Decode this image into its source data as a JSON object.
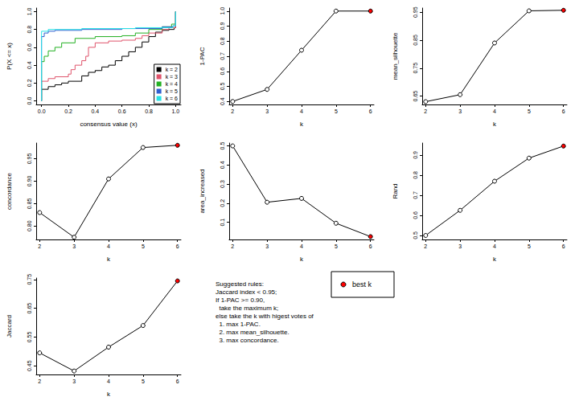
{
  "chart_data": [
    {
      "type": "line",
      "step": true,
      "x_label": "consensus value (x)",
      "y_label": "P(X <= x)",
      "xlim": [
        -0.04,
        1.04
      ],
      "ylim": [
        -0.04,
        1.04
      ],
      "xticks": [
        {
          "value": 0,
          "label": "0.0"
        },
        {
          "value": 0.2,
          "label": "0.2"
        },
        {
          "value": 0.4,
          "label": "0.4"
        },
        {
          "value": 0.6,
          "label": "0.6"
        },
        {
          "value": 0.8,
          "label": "0.8"
        },
        {
          "value": 1,
          "label": "1.0"
        }
      ],
      "yticks": [
        {
          "value": 0,
          "label": "0.0"
        },
        {
          "value": 0.2,
          "label": "0.2"
        },
        {
          "value": 0.4,
          "label": "0.4"
        },
        {
          "value": 0.6,
          "label": "0.6"
        },
        {
          "value": 0.8,
          "label": "0.8"
        },
        {
          "value": 1,
          "label": "1.0"
        }
      ],
      "legend": "bottomright",
      "series": [
        {
          "name": "k = 2",
          "color": "#000000",
          "x": [
            0,
            0,
            0.05,
            0.1,
            0.15,
            0.2,
            0.3,
            0.35,
            0.4,
            0.45,
            0.5,
            0.55,
            0.6,
            0.65,
            0.7,
            0.75,
            0.8,
            0.85,
            0.9,
            0.95,
            0.99,
            1.0
          ],
          "values": [
            0,
            0.13,
            0.16,
            0.18,
            0.2,
            0.22,
            0.28,
            0.32,
            0.34,
            0.38,
            0.4,
            0.45,
            0.5,
            0.55,
            0.6,
            0.66,
            0.72,
            0.77,
            0.79,
            0.8,
            0.82,
            1.0
          ]
        },
        {
          "name": "k = 3",
          "color": "#df536b",
          "x": [
            0,
            0,
            0.05,
            0.1,
            0.2,
            0.22,
            0.25,
            0.3,
            0.33,
            0.35,
            0.4,
            0.5,
            0.6,
            0.7,
            0.75,
            0.8,
            0.9,
            0.95,
            1.0
          ],
          "values": [
            0,
            0.22,
            0.25,
            0.27,
            0.3,
            0.35,
            0.4,
            0.45,
            0.5,
            0.6,
            0.65,
            0.67,
            0.68,
            0.7,
            0.73,
            0.76,
            0.8,
            0.82,
            1.0
          ]
        },
        {
          "name": "k = 4",
          "color": "#22b022",
          "x": [
            0,
            0,
            0.02,
            0.05,
            0.1,
            0.15,
            0.25,
            0.4,
            0.6,
            0.7,
            0.8,
            0.9,
            0.97,
            1.0
          ],
          "values": [
            0,
            0.44,
            0.5,
            0.56,
            0.6,
            0.65,
            0.7,
            0.72,
            0.73,
            0.76,
            0.8,
            0.83,
            0.86,
            1.0
          ]
        },
        {
          "name": "k = 5",
          "color": "#2f5fd0",
          "x": [
            0,
            0,
            0.02,
            0.05,
            0.1,
            0.3,
            0.6,
            0.9,
            0.98,
            1.0
          ],
          "values": [
            0,
            0.72,
            0.76,
            0.78,
            0.79,
            0.8,
            0.81,
            0.83,
            0.84,
            1.0
          ]
        },
        {
          "name": "k = 6",
          "color": "#28e2e5",
          "x": [
            0,
            0,
            0.05,
            0.3,
            0.7,
            0.98,
            1.0
          ],
          "values": [
            0,
            0.78,
            0.8,
            0.81,
            0.82,
            0.84,
            1.0
          ]
        }
      ]
    },
    {
      "type": "line",
      "x_label": "k",
      "y_label": "1-PAC",
      "marker": "circle",
      "x": [
        2,
        3,
        4,
        5,
        6
      ],
      "values": [
        0.4,
        0.48,
        0.74,
        1.0,
        1.0
      ],
      "colors": [
        "black",
        "black",
        "black",
        "black",
        "red"
      ],
      "xlim": [
        1.9,
        6.1
      ],
      "xticks": [
        2,
        3,
        4,
        5,
        6
      ],
      "ylim": [
        0.38,
        1.02
      ],
      "yticks": [
        0.4,
        0.5,
        0.6,
        0.7,
        0.8,
        0.9,
        {
          "value": 1,
          "label": "1.0"
        }
      ]
    },
    {
      "type": "line",
      "x_label": "k",
      "y_label": "mean_silhouette",
      "marker": "circle",
      "x": [
        2,
        3,
        4,
        5,
        6
      ],
      "values": [
        0.63,
        0.655,
        0.84,
        0.955,
        0.957
      ],
      "colors": [
        "black",
        "black",
        "black",
        "black",
        "red"
      ],
      "xlim": [
        1.9,
        6.1
      ],
      "xticks": [
        2,
        3,
        4,
        5,
        6
      ],
      "ylim": [
        0.62,
        0.965
      ],
      "yticks": [
        0.65,
        0.75,
        0.85,
        0.95
      ]
    },
    {
      "type": "line",
      "x_label": "k",
      "y_label": "concordance",
      "marker": "circle",
      "x": [
        2,
        3,
        4,
        5,
        6
      ],
      "values": [
        0.83,
        0.775,
        0.905,
        0.975,
        0.98
      ],
      "colors": [
        "black",
        "black",
        "black",
        "black",
        "red"
      ],
      "xlim": [
        1.9,
        6.1
      ],
      "xticks": [
        2,
        3,
        4,
        5,
        6
      ],
      "ylim": [
        0.77,
        0.985
      ],
      "yticks": [
        {
          "value": 0.8,
          "label": "0.80"
        },
        0.85,
        {
          "value": 0.9,
          "label": "0.90"
        },
        0.95
      ]
    },
    {
      "type": "line",
      "x_label": "k",
      "y_label": "area_increased",
      "marker": "circle",
      "x": [
        2,
        3,
        4,
        5,
        6
      ],
      "values": [
        0.5,
        0.205,
        0.225,
        0.095,
        0.025
      ],
      "colors": [
        "black",
        "black",
        "black",
        "black",
        "red"
      ],
      "xlim": [
        1.9,
        6.1
      ],
      "xticks": [
        2,
        3,
        4,
        5,
        6
      ],
      "ylim": [
        0.01,
        0.515
      ],
      "yticks": [
        0.1,
        0.2,
        0.3,
        0.4,
        0.5
      ]
    },
    {
      "type": "line",
      "x_label": "k",
      "y_label": "Rand",
      "marker": "circle",
      "x": [
        2,
        3,
        4,
        5,
        6
      ],
      "values": [
        0.5,
        0.625,
        0.77,
        0.885,
        0.945
      ],
      "colors": [
        "black",
        "black",
        "black",
        "black",
        "red"
      ],
      "xlim": [
        1.9,
        6.1
      ],
      "xticks": [
        2,
        3,
        4,
        5,
        6
      ],
      "ylim": [
        0.48,
        0.96
      ],
      "yticks": [
        0.5,
        0.6,
        0.7,
        0.8,
        0.9
      ]
    },
    {
      "type": "line",
      "x_label": "k",
      "y_label": "Jaccard",
      "marker": "circle",
      "x": [
        2,
        3,
        4,
        5,
        6
      ],
      "values": [
        0.495,
        0.432,
        0.515,
        0.59,
        0.745
      ],
      "colors": [
        "black",
        "black",
        "black",
        "black",
        "red"
      ],
      "xlim": [
        1.9,
        6.1
      ],
      "xticks": [
        2,
        3,
        4,
        5,
        6
      ],
      "ylim": [
        0.42,
        0.755
      ],
      "yticks": [
        0.45,
        0.55,
        0.65,
        0.75
      ]
    }
  ],
  "text_panel": {
    "lines": [
      "Suggested rules:",
      "Jaccard index < 0.95;",
      "If 1-PAC >= 0.90,",
      "  take the maximum k;",
      "else take the k with higest votes of",
      "  1. max 1-PAC.",
      "  2. max mean_silhouette.",
      "  3. max concordance."
    ],
    "legend": {
      "label": "best k",
      "color": "red"
    }
  }
}
